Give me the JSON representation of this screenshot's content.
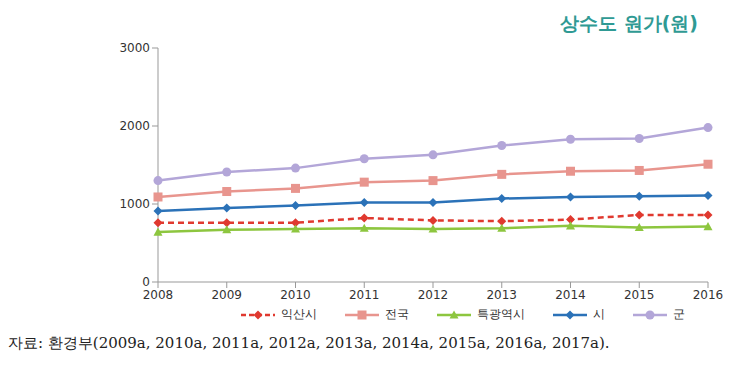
{
  "chart_data": {
    "type": "line",
    "title": "상수도 원가(원)",
    "source": "자료: 환경부(2009a, 2010a, 2011a, 2012a, 2013a, 2014a, 2015a, 2016a, 2017a).",
    "categories": [
      "2008",
      "2009",
      "2010",
      "2011",
      "2012",
      "2013",
      "2014",
      "2015",
      "2016"
    ],
    "series": [
      {
        "name": "익산시",
        "color": "#e0392f",
        "marker": "diamond",
        "line_style": "dashed",
        "values": [
          760,
          760,
          760,
          820,
          790,
          780,
          800,
          860,
          860
        ]
      },
      {
        "name": "전국",
        "color": "#e8958e",
        "marker": "square",
        "line_style": "solid",
        "values": [
          1090,
          1160,
          1200,
          1280,
          1300,
          1380,
          1420,
          1430,
          1510
        ]
      },
      {
        "name": "특광역시",
        "color": "#8dc63f",
        "marker": "triangle",
        "line_style": "solid",
        "values": [
          640,
          670,
          680,
          690,
          680,
          690,
          720,
          700,
          710
        ]
      },
      {
        "name": "시",
        "color": "#2b72b8",
        "marker": "diamond",
        "line_style": "solid",
        "values": [
          910,
          950,
          980,
          1020,
          1020,
          1070,
          1090,
          1100,
          1110
        ]
      },
      {
        "name": "군",
        "color": "#b3a6d8",
        "marker": "circle",
        "line_style": "solid",
        "values": [
          1300,
          1410,
          1460,
          1580,
          1630,
          1750,
          1830,
          1840,
          1980
        ]
      }
    ],
    "ylim": [
      0,
      3000
    ],
    "yticks": [
      0,
      1000,
      2000,
      3000
    ],
    "grid": false,
    "legend": "bottom"
  }
}
